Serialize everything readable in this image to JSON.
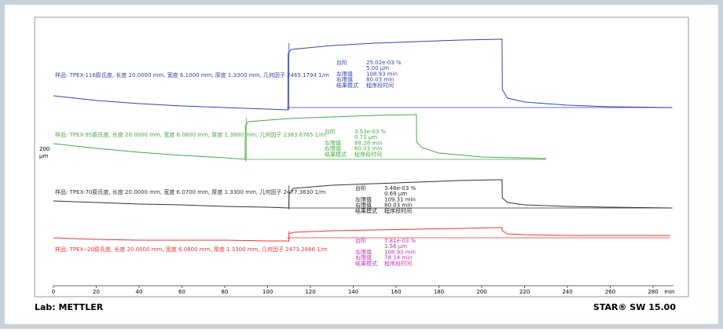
{
  "chart_data": {
    "type": "line",
    "xlabel": "min",
    "xlim": [
      0,
      288
    ],
    "xticks": [
      0,
      20,
      40,
      60,
      80,
      100,
      120,
      140,
      160,
      180,
      200,
      220,
      240,
      260,
      280
    ],
    "ylim": [
      0,
      342
    ],
    "y_scale_value": "200",
    "y_scale_unit": "μm",
    "footer_left": "Lab: METTLER",
    "footer_right": "STAR® SW 15.00",
    "series": [
      {
        "name": "样品: TPEX-116膨氏度, 长度 20.0000 mm, 宽度 6.1000 mm, 厚度 1.3300 mm, 几何因子 2465.1794 1/m",
        "color": "#3344aa",
        "annotation_color": "#3344aa",
        "x": [
          0,
          20,
          40,
          60,
          80,
          100,
          109.5,
          109.6,
          111,
          130,
          150,
          170,
          190,
          209.5,
          209.6,
          212,
          220,
          240,
          260,
          289
        ],
        "values": [
          242,
          236,
          232,
          229,
          227,
          225,
          224,
          296,
          301,
          306,
          309,
          311,
          313,
          314,
          250,
          239,
          234,
          230,
          228,
          227
        ],
        "baseline": {
          "x": [
            109,
            289
          ],
          "y": 227
        },
        "step": {
          "x": 110,
          "y": [
            224,
            309
          ]
        },
        "annotation": [
          {
            "label": "台阶",
            "value": "25.02e-03 %"
          },
          {
            "value": "5.00 μm"
          },
          {
            "label": "左限值",
            "value": "108.93 min"
          },
          {
            "label": "右限值",
            "value": "80.03 min"
          },
          {
            "label": "结果模式",
            "value": "程序段时间"
          }
        ]
      },
      {
        "name": "样品: TPEX-95膨氏度, 长度 20.0000 mm, 宽度 6.0800 mm, 厚度 1.3800 mm, 几何因子 2383.6765 1/m",
        "color": "#44aa44",
        "annotation_color": "#44aa44",
        "x": [
          0,
          20,
          40,
          60,
          80,
          89.5,
          89.6,
          91,
          110,
          130,
          150,
          169.5,
          169.6,
          172,
          180,
          200,
          230
        ],
        "values": [
          181,
          175,
          170,
          166,
          163,
          161,
          204,
          209,
          213,
          215,
          217,
          218,
          183,
          176,
          169,
          164,
          162
        ],
        "baseline": {
          "x": [
            89,
            230
          ],
          "y": 161
        },
        "step": {
          "x": 90,
          "y": [
            158,
            214
          ]
        },
        "annotation": [
          {
            "label": "台阶",
            "value": "3.53e-03 %"
          },
          {
            "value": "0.71 μm"
          },
          {
            "label": "左限值",
            "value": "88.28 min"
          },
          {
            "label": "右限值",
            "value": "60.03 min"
          },
          {
            "label": "结果模式",
            "value": "程序段时间"
          }
        ]
      },
      {
        "name": "样品: TPEX-70膨氏度, 长度 20.0000 mm, 宽度 6.0700 mm, 厚度 1.3300 mm, 几何因子 2477.3630 1/m",
        "color": "#333333",
        "annotation_color": "#222222",
        "x": [
          0,
          20,
          40,
          60,
          80,
          100,
          109.9,
          110,
          112,
          130,
          150,
          170,
          190,
          209.5,
          209.6,
          212,
          220,
          240,
          260,
          289
        ],
        "values": [
          108,
          106,
          104,
          103,
          101,
          100,
          99,
          116,
          124,
          128,
          130,
          132,
          134,
          135,
          112,
          106,
          103,
          101,
          100,
          99
        ],
        "baseline": {
          "x": [
            110,
            289
          ],
          "y": 99
        },
        "step": {
          "x": 110,
          "y": [
            97,
            128
          ]
        },
        "annotation": [
          {
            "label": "台阶",
            "value": "3.46e-03 %"
          },
          {
            "value": "0.69 μm"
          },
          {
            "label": "左限值",
            "value": "109.31 min"
          },
          {
            "label": "右限值",
            "value": "80.03 min"
          },
          {
            "label": "结果模式",
            "value": "程序段时间"
          }
        ]
      },
      {
        "name": "样品: TPEX--20膨氏度, 长度 20.0000 mm, 宽度 6.0800 mm, 厚度 1.3300 mm, 几何因子 2473.2886 1/m",
        "color": "#ee3333",
        "annotation_color": "#bb33bb",
        "x": [
          0,
          20,
          40,
          60,
          80,
          100,
          109.9,
          110,
          112,
          130,
          150,
          170,
          190,
          209.5,
          209.6,
          212,
          220,
          240,
          260,
          288
        ],
        "values": [
          61,
          59,
          58,
          58,
          58,
          57,
          57,
          66,
          68,
          70,
          71,
          72,
          73,
          74,
          70,
          66,
          65,
          64,
          64,
          64
        ],
        "baseline": {
          "x": [
            109,
            288
          ],
          "y": 61
        },
        "step": {
          "x": 110,
          "y": [
            56,
            70
          ]
        },
        "annotation": [
          {
            "label": "台阶",
            "value": "7.81e-03 %"
          },
          {
            "value": "1.56 μm"
          },
          {
            "label": "左限值",
            "value": "108.93 min"
          },
          {
            "label": "右限值",
            "value": "78.14 min"
          },
          {
            "label": "结果模式",
            "value": "程序段时间"
          }
        ]
      }
    ]
  }
}
